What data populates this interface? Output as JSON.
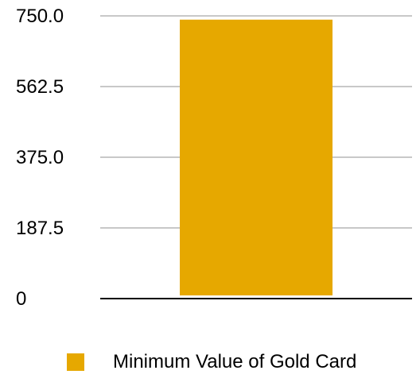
{
  "chart_data": {
    "type": "bar",
    "categories": [
      ""
    ],
    "series": [
      {
        "name": "Minimum Value of Gold Card",
        "values": [
          740
        ],
        "color": "#E6A800"
      }
    ],
    "yticks": [
      "0",
      "187.5",
      "375.0",
      "562.5",
      "750.0"
    ],
    "ylim": [
      0,
      750
    ],
    "grid": true,
    "legend_position": "bottom"
  }
}
